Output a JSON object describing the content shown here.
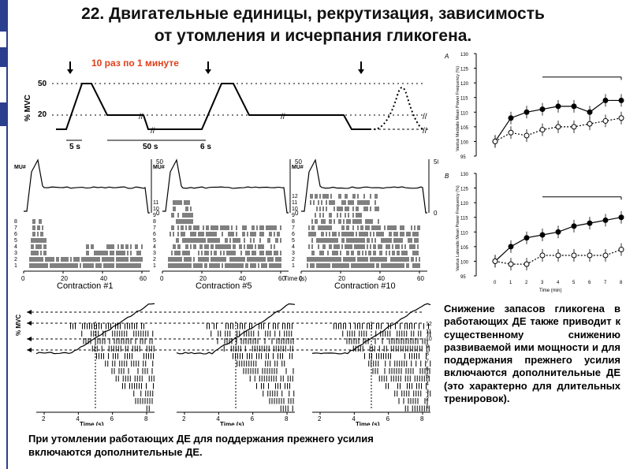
{
  "title": {
    "line1": "22. Двигательные единицы, рекрутизация, зависимость",
    "line2": "от утомления и исчерпания гликогена."
  },
  "protocol": {
    "header": "10 раз по 1 минуте",
    "ylabel": "% MVC",
    "y50": "50",
    "y20": "20",
    "d5": "5 s",
    "d50": "50 s",
    "d6": "6 s",
    "colors": {
      "header": "#e0401a"
    }
  },
  "raster_panels": [
    {
      "caption": "Contraction #1",
      "mu_label": "MU#",
      "rows": [
        "8",
        "7",
        "6",
        "5",
        "4",
        "3",
        "2",
        "1"
      ],
      "xticks": [
        "0",
        "20",
        "40",
        "60"
      ],
      "r50": "50",
      "r0": "0"
    },
    {
      "caption": "Contraction #5",
      "mu_label": "MU#",
      "rows": [
        "11",
        "10",
        "9",
        "8",
        "7",
        "6",
        "5",
        "4",
        "3",
        "2",
        "1"
      ],
      "xticks": [
        "0",
        "20",
        "40",
        "60"
      ],
      "r50": "50",
      "r0": "0"
    },
    {
      "caption": "Contraction #10",
      "mu_label": "MU#",
      "rows": [
        "12",
        "11",
        "10",
        "9",
        "8",
        "7",
        "6",
        "5",
        "4",
        "3",
        "2",
        "1"
      ],
      "xticks": [
        "0",
        "20",
        "40",
        "60"
      ],
      "xlabel": "Time (s)",
      "r50": "50",
      "r0": "0"
    }
  ],
  "ramp_panels": {
    "ylabel": "% MVC",
    "rows": [
      "12",
      "11",
      "10",
      "9",
      "8",
      "7",
      "6",
      "5",
      "4",
      "3",
      "2",
      "1"
    ],
    "xticks": [
      "2",
      "4",
      "6",
      "8"
    ],
    "xlabel": "Time (s)"
  },
  "freq_charts": [
    {
      "label": "A",
      "ylabel": "Vastus Medialis Mean Power Frequency (%)",
      "yticks": [
        "130",
        "125",
        "120",
        "115",
        "110",
        "105",
        "100",
        "95"
      ]
    },
    {
      "label": "B",
      "ylabel": "Vastus Lateralis Mean Power Frequency (%)",
      "yticks": [
        "130",
        "125",
        "120",
        "115",
        "110",
        "105",
        "100",
        "95"
      ],
      "xticks": [
        "0",
        "1",
        "2",
        "3",
        "4",
        "5",
        "6",
        "7",
        "8"
      ],
      "xlabel": "Time (min)"
    }
  ],
  "captions": {
    "bottom": "При утомлении работающих ДЕ для поддержания прежнего усилия включаются дополнительные ДЕ.",
    "right": "Снижение запасов гликогена в работающих ДЕ также приводит к существенному снижению развиваемой ими мощности и для поддержания прежнего усилия включаются дополнительные ДЕ (это характерно для длительных тренировок)."
  }
}
